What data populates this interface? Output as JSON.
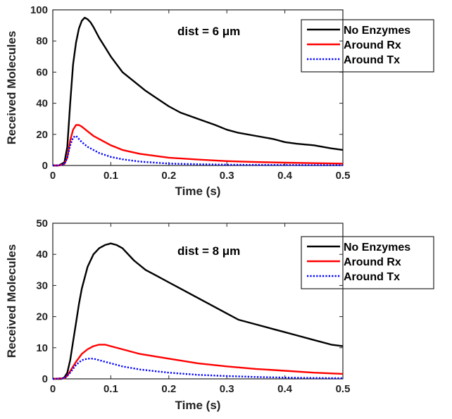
{
  "chart_data": [
    {
      "type": "line",
      "annotation": "dist = 6 μm",
      "xlabel": "Time (s)",
      "ylabel": "Received Molecules",
      "xlim": [
        0,
        0.5
      ],
      "ylim": [
        0,
        100
      ],
      "xticks": [
        "0",
        "0.1",
        "0.2",
        "0.3",
        "0.4",
        "0.5"
      ],
      "yticks": [
        "0",
        "20",
        "40",
        "60",
        "80",
        "100"
      ],
      "grid": false,
      "legend_position": "top-right",
      "series": [
        {
          "name": "No Enzymes",
          "color": "#000000",
          "style": "solid",
          "x": [
            0,
            0.01,
            0.02,
            0.025,
            0.03,
            0.035,
            0.04,
            0.045,
            0.05,
            0.055,
            0.06,
            0.065,
            0.07,
            0.08,
            0.09,
            0.1,
            0.12,
            0.14,
            0.16,
            0.18,
            0.2,
            0.22,
            0.25,
            0.28,
            0.3,
            0.32,
            0.35,
            0.38,
            0.4,
            0.42,
            0.45,
            0.48,
            0.5
          ],
          "y": [
            0,
            0,
            2,
            12,
            40,
            65,
            79,
            88,
            93,
            95,
            94,
            92,
            89,
            82,
            76,
            70,
            60,
            54,
            48,
            43,
            38,
            34,
            30,
            26,
            23,
            21,
            19,
            17,
            15,
            14,
            13,
            11,
            10
          ]
        },
        {
          "name": "Around Rx",
          "color": "#ff0000",
          "style": "solid",
          "x": [
            0,
            0.01,
            0.02,
            0.025,
            0.03,
            0.035,
            0.04,
            0.045,
            0.05,
            0.06,
            0.07,
            0.08,
            0.1,
            0.12,
            0.15,
            0.2,
            0.25,
            0.3,
            0.35,
            0.4,
            0.45,
            0.5
          ],
          "y": [
            0,
            0,
            1,
            5,
            16,
            23,
            26,
            26,
            25,
            22,
            19,
            17,
            13,
            10,
            7.5,
            5,
            3.8,
            2.8,
            2.2,
            1.8,
            1.5,
            1.2
          ]
        },
        {
          "name": "Around Tx",
          "color": "#0000ff",
          "style": "dotted",
          "x": [
            0,
            0.01,
            0.02,
            0.025,
            0.03,
            0.035,
            0.04,
            0.045,
            0.05,
            0.06,
            0.07,
            0.08,
            0.1,
            0.12,
            0.15,
            0.2,
            0.25,
            0.3,
            0.4,
            0.5
          ],
          "y": [
            0,
            0,
            1,
            5,
            13,
            18,
            19,
            17,
            15,
            12,
            10,
            8,
            5.5,
            4,
            2.5,
            1.2,
            0.8,
            0.5,
            0.3,
            0.2
          ]
        }
      ]
    },
    {
      "type": "line",
      "annotation": "dist = 8 μm",
      "xlabel": "Time (s)",
      "ylabel": "Received Molecules",
      "xlim": [
        0,
        0.5
      ],
      "ylim": [
        0,
        50
      ],
      "xticks": [
        "0",
        "0.1",
        "0.2",
        "0.3",
        "0.4",
        "0.5"
      ],
      "yticks": [
        "0",
        "10",
        "20",
        "30",
        "40",
        "50"
      ],
      "grid": false,
      "legend_position": "top-right",
      "series": [
        {
          "name": "No Enzymes",
          "color": "#000000",
          "style": "solid",
          "x": [
            0,
            0.015,
            0.02,
            0.025,
            0.03,
            0.035,
            0.04,
            0.045,
            0.05,
            0.06,
            0.07,
            0.08,
            0.09,
            0.1,
            0.11,
            0.12,
            0.14,
            0.16,
            0.18,
            0.2,
            0.22,
            0.25,
            0.28,
            0.3,
            0.32,
            0.35,
            0.38,
            0.4,
            0.42,
            0.45,
            0.48,
            0.5
          ],
          "y": [
            0,
            0,
            0.5,
            2,
            6,
            12,
            18,
            24,
            29,
            36,
            40,
            42,
            43,
            43.5,
            43,
            42,
            38,
            35,
            33,
            31,
            29,
            26,
            23,
            21,
            19,
            17.5,
            16,
            15,
            14,
            12.5,
            11,
            10.5
          ]
        },
        {
          "name": "Around Rx",
          "color": "#ff0000",
          "style": "solid",
          "x": [
            0,
            0.02,
            0.025,
            0.03,
            0.04,
            0.05,
            0.06,
            0.07,
            0.08,
            0.09,
            0.1,
            0.12,
            0.15,
            0.2,
            0.25,
            0.3,
            0.35,
            0.4,
            0.45,
            0.5
          ],
          "y": [
            0,
            0.2,
            1,
            2.5,
            5.5,
            8,
            9.5,
            10.5,
            11,
            11,
            10.5,
            9.5,
            8,
            6.5,
            5,
            4,
            3.2,
            2.6,
            2,
            1.6
          ]
        },
        {
          "name": "Around Tx",
          "color": "#0000ff",
          "style": "dotted",
          "x": [
            0,
            0.02,
            0.025,
            0.03,
            0.04,
            0.05,
            0.06,
            0.07,
            0.08,
            0.09,
            0.1,
            0.12,
            0.15,
            0.2,
            0.25,
            0.3,
            0.35,
            0.4,
            0.45,
            0.5
          ],
          "y": [
            0,
            0.2,
            1,
            2,
            4.5,
            6,
            6.5,
            6.5,
            6,
            5.5,
            5,
            4,
            3,
            2,
            1.3,
            0.9,
            0.6,
            0.4,
            0.3,
            0.2
          ]
        }
      ]
    }
  ]
}
